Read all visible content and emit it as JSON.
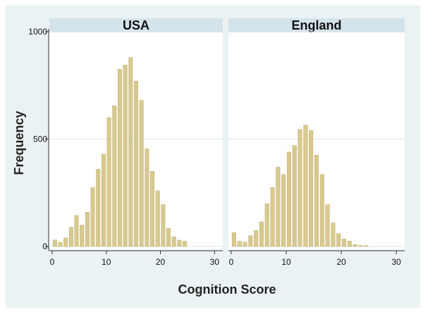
{
  "chart_data": {
    "type": "bar",
    "xlabel": "Cognition Score",
    "ylabel": "Frequency",
    "xlim": [
      0,
      31
    ],
    "ylim": [
      0,
      1000
    ],
    "x_ticks": [
      0,
      10,
      20,
      30
    ],
    "y_ticks": [
      0,
      500,
      1000
    ],
    "grid": true,
    "bar_color": "#d8c98e",
    "bar_edge_color": "#b9a66a",
    "panel_background": "#ffffff",
    "strip_color": "#d5e3ea",
    "figure_background": "#eaf2f3",
    "panels": [
      {
        "title": "USA",
        "x": [
          0,
          1,
          2,
          3,
          4,
          5,
          6,
          7,
          8,
          9,
          10,
          11,
          12,
          13,
          14,
          15,
          16,
          17,
          18,
          19,
          20,
          21,
          22,
          23,
          24
        ],
        "values": [
          30,
          20,
          40,
          90,
          145,
          100,
          160,
          275,
          360,
          430,
          600,
          655,
          825,
          845,
          880,
          770,
          680,
          455,
          350,
          260,
          195,
          85,
          45,
          30,
          25
        ]
      },
      {
        "title": "England",
        "x": [
          0,
          1,
          2,
          3,
          4,
          5,
          6,
          7,
          8,
          9,
          10,
          11,
          12,
          13,
          14,
          15,
          16,
          17,
          18,
          19,
          20,
          21,
          22,
          23,
          24
        ],
        "values": [
          65,
          25,
          20,
          50,
          75,
          115,
          200,
          275,
          370,
          335,
          440,
          470,
          545,
          565,
          540,
          425,
          335,
          195,
          110,
          60,
          35,
          25,
          10,
          5,
          5
        ]
      }
    ]
  }
}
